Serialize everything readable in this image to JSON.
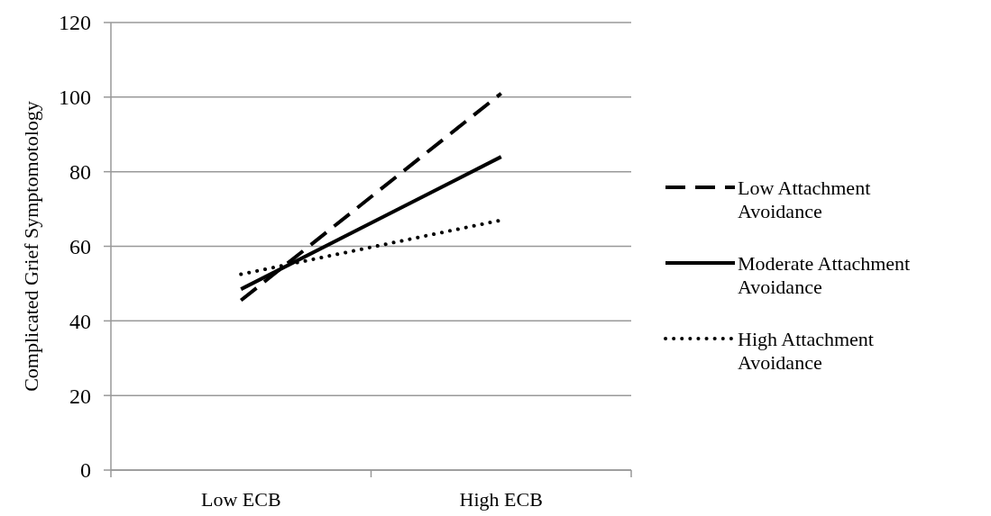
{
  "chart_data": {
    "type": "line",
    "ylabel": "Complicated Grief Symptomotology",
    "categories": [
      "Low ECB",
      "High ECB"
    ],
    "series": [
      {
        "name": "Low Attachment Avoidance",
        "color": "#000000",
        "values": [
          45.5,
          101
        ],
        "line_style": "dashed"
      },
      {
        "name": "Moderate Attachment Avoidance",
        "color": "#000000",
        "values": [
          48.5,
          84
        ],
        "line_style": "solid"
      },
      {
        "name": "High Attachment Avoidance",
        "color": "#000000",
        "values": [
          52.5,
          67
        ],
        "line_style": "dotted"
      }
    ],
    "ylim": [
      0,
      120
    ],
    "yticks": [
      0,
      20,
      40,
      60,
      80,
      100,
      120
    ],
    "grid": "y",
    "legend": "right"
  }
}
